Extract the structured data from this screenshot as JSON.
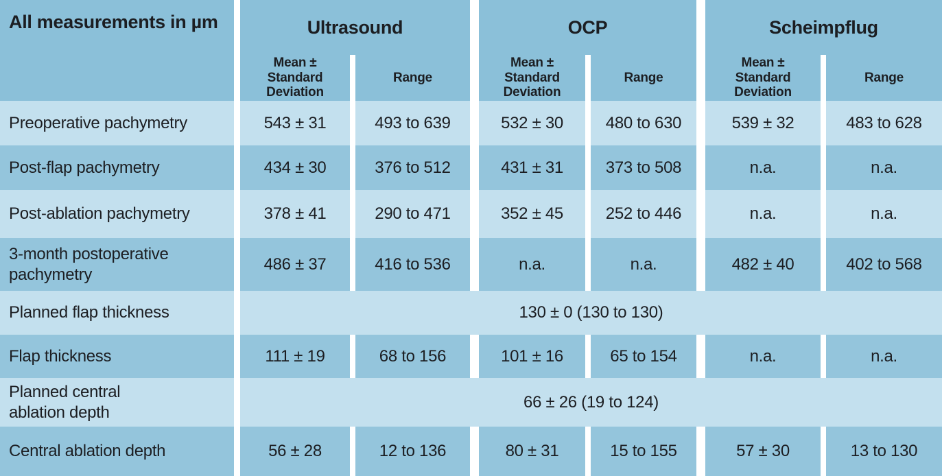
{
  "table": {
    "corner_label": "All measurements in µm",
    "groups": [
      {
        "title": "Ultrasound",
        "sub_mean": "Mean ±\nStandard\nDeviation",
        "sub_range": "Range"
      },
      {
        "title": "OCP",
        "sub_mean": "Mean ±\nStandard\nDeviation",
        "sub_range": "Range"
      },
      {
        "title": "Scheimpflug",
        "sub_mean": "Mean ±\nStandard\nDeviation",
        "sub_range": "Range"
      }
    ],
    "rows": [
      {
        "label": "Preoperative pachymetry",
        "cells": [
          "543 ± 31",
          "493 to 639",
          "532 ± 30",
          "480 to 630",
          "539 ± 32",
          "483 to 628"
        ]
      },
      {
        "label": "Post-flap pachymetry",
        "cells": [
          "434 ± 30",
          "376 to 512",
          "431 ± 31",
          "373 to 508",
          "n.a.",
          "n.a."
        ]
      },
      {
        "label": "Post-ablation pachymetry",
        "cells": [
          "378 ± 41",
          "290 to 471",
          "352 ± 45",
          "252 to 446",
          "n.a.",
          "n.a."
        ]
      },
      {
        "label": "3-month postoperative\npachymetry",
        "cells": [
          "486 ± 37",
          "416 to 536",
          "n.a.",
          "n.a.",
          "482 ± 40",
          "402 to 568"
        ]
      },
      {
        "label": "Planned flap thickness",
        "merged": "130 ± 0 (130 to 130)"
      },
      {
        "label": "Flap thickness",
        "cells": [
          "111 ± 19",
          "68 to 156",
          "101 ± 16",
          "65 to 154",
          "n.a.",
          "n.a."
        ]
      },
      {
        "label": "Planned central\nablation depth",
        "merged": "66 ± 26 (19 to 124)"
      },
      {
        "label": "Central ablation depth",
        "cells": [
          "56 ± 28",
          "12 to 136",
          "80 ± 31",
          "15 to 155",
          "57 ± 30",
          "13 to 130"
        ]
      }
    ],
    "colors": {
      "header_bg": "#8bc0d9",
      "row_light": "#c3e0ee",
      "row_dark": "#94c5dc",
      "text": "#1c1e22"
    }
  }
}
